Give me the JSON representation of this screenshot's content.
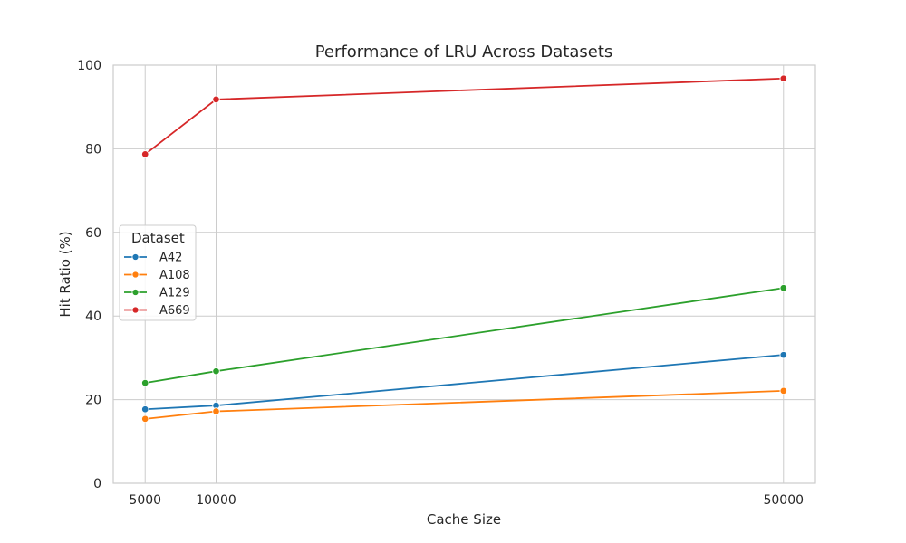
{
  "chart_data": {
    "type": "line",
    "title": "Performance of LRU Across Datasets",
    "xlabel": "Cache Size",
    "ylabel": "Hit Ratio (%)",
    "x": [
      5000,
      10000,
      50000
    ],
    "xticks": [
      "5000",
      "10000",
      "50000"
    ],
    "xlim": [
      2750,
      52250
    ],
    "ylim": [
      0,
      100
    ],
    "yticks": [
      0,
      20,
      40,
      60,
      80,
      100
    ],
    "grid": true,
    "legend": {
      "title": "Dataset",
      "placement": "center-left"
    },
    "series": [
      {
        "name": "A42",
        "color": "#1f77b4",
        "values": [
          17.7,
          18.6,
          30.7
        ]
      },
      {
        "name": "A108",
        "color": "#ff7f0e",
        "values": [
          15.4,
          17.2,
          22.1
        ]
      },
      {
        "name": "A129",
        "color": "#2ca02c",
        "values": [
          24.0,
          26.8,
          46.7
        ]
      },
      {
        "name": "A669",
        "color": "#d62728",
        "values": [
          78.7,
          91.8,
          96.8
        ]
      }
    ]
  }
}
